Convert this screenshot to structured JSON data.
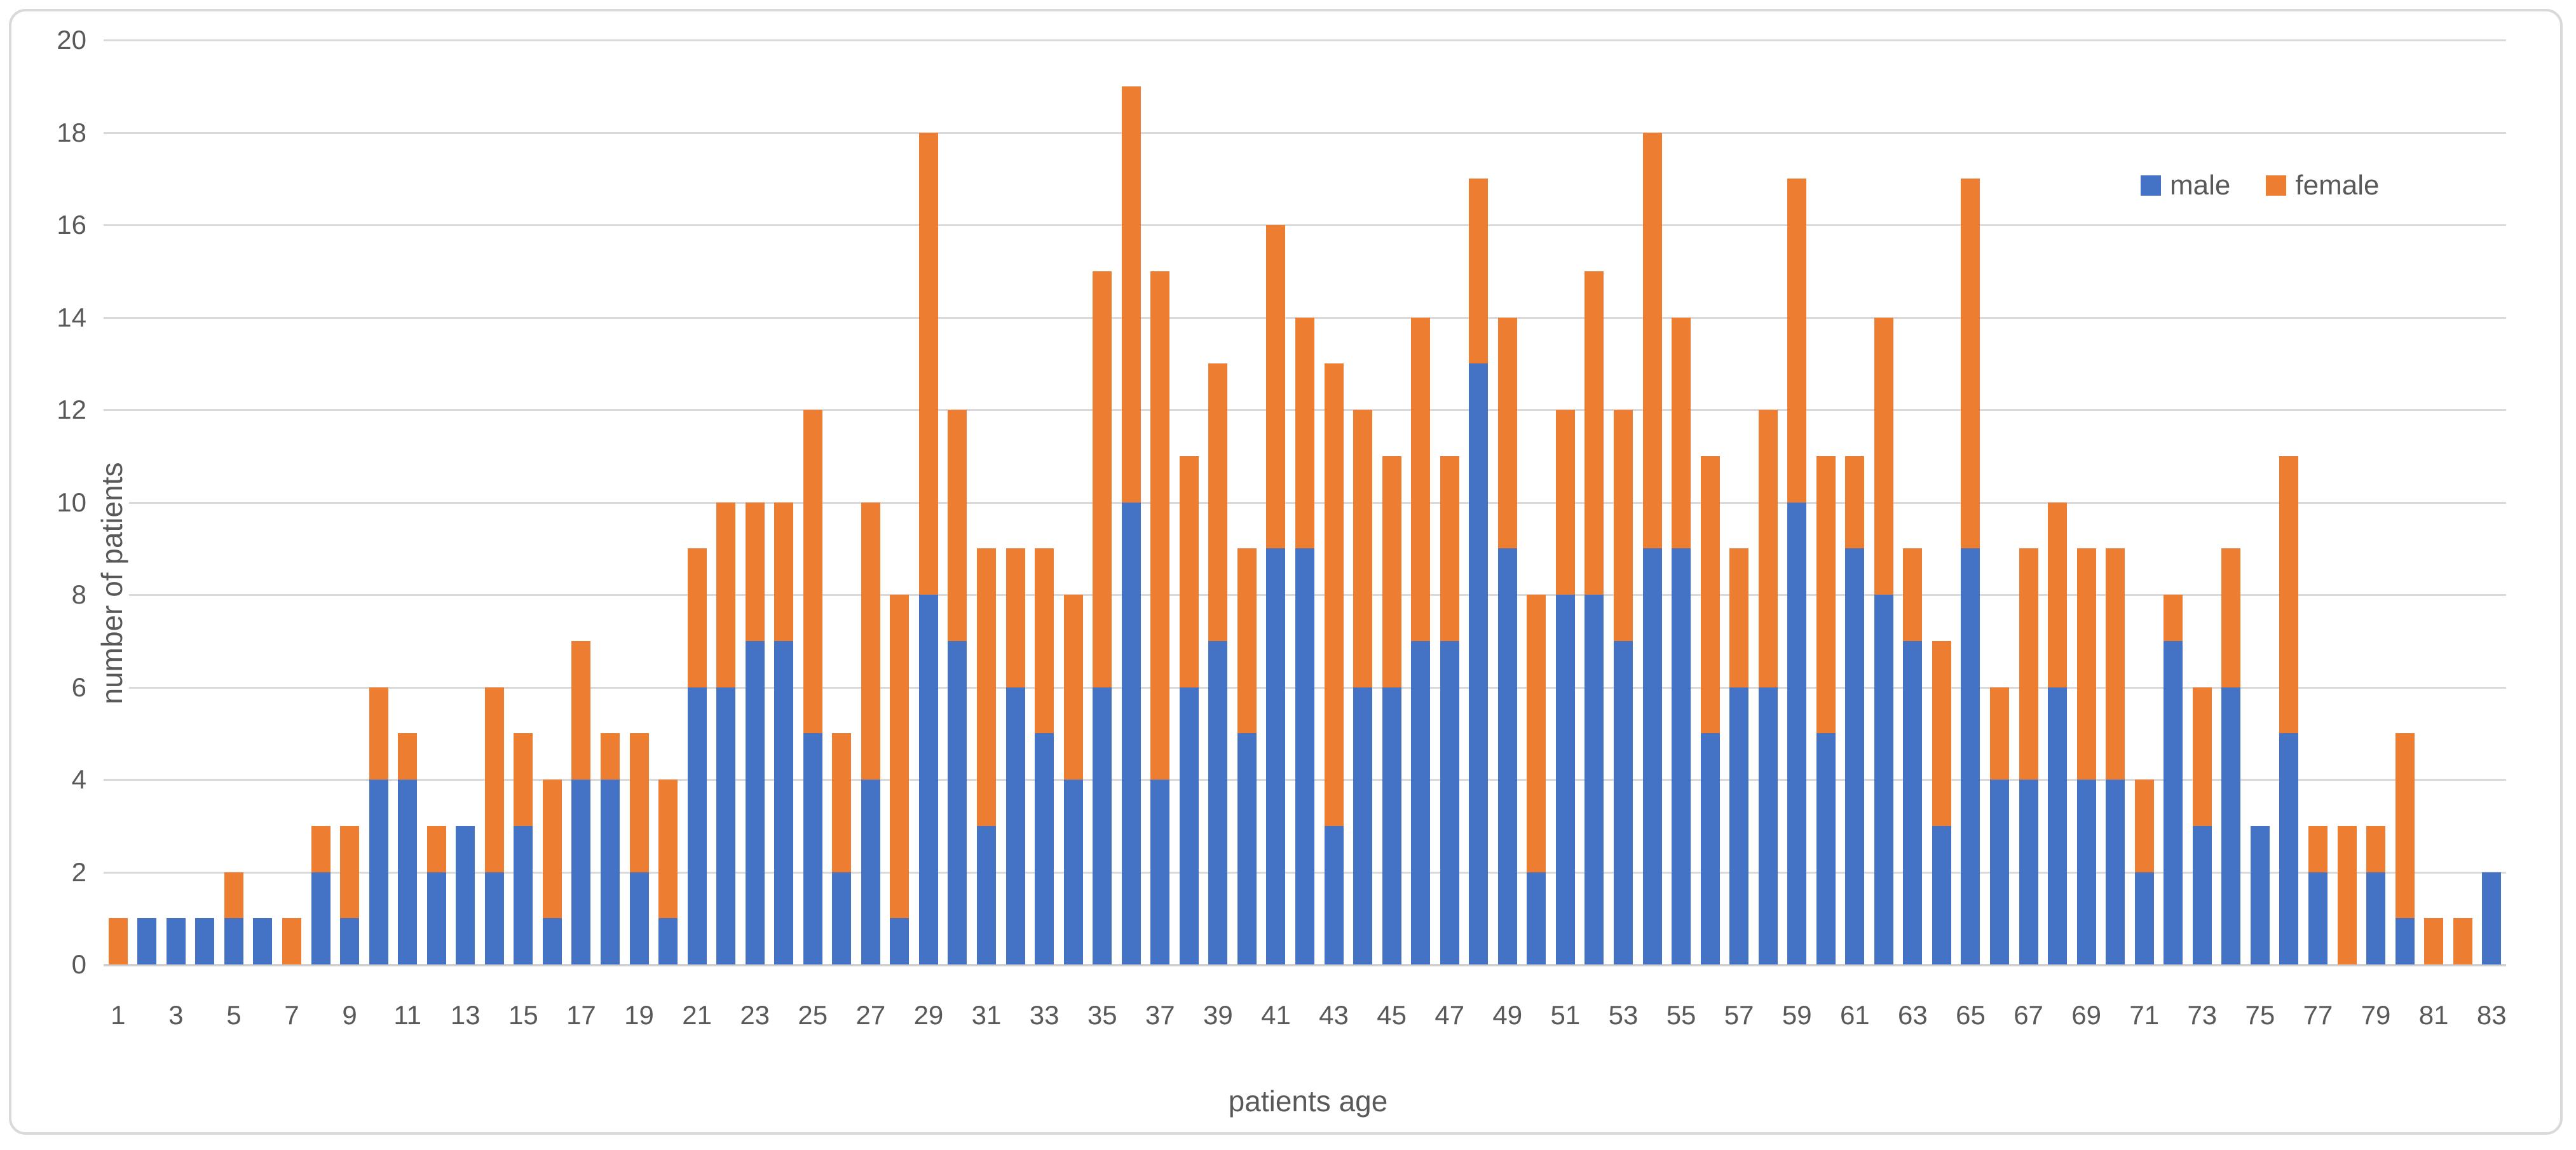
{
  "chart_data": {
    "type": "bar",
    "stacked": true,
    "title": "",
    "xlabel": "patients age",
    "ylabel": "number of patients",
    "ylim": [
      0,
      20
    ],
    "ytick_step": 2,
    "grid": true,
    "legend_position": "top-right",
    "categories": [
      1,
      2,
      3,
      4,
      5,
      6,
      7,
      8,
      9,
      10,
      11,
      12,
      13,
      14,
      15,
      16,
      17,
      18,
      19,
      20,
      21,
      22,
      23,
      24,
      25,
      26,
      27,
      28,
      29,
      30,
      31,
      32,
      33,
      34,
      35,
      36,
      37,
      38,
      39,
      40,
      41,
      42,
      43,
      44,
      45,
      46,
      47,
      48,
      49,
      50,
      51,
      52,
      53,
      54,
      55,
      56,
      57,
      58,
      59,
      60,
      61,
      62,
      63,
      64,
      65,
      66,
      67,
      68,
      69,
      70,
      71,
      72,
      73,
      74,
      75,
      76,
      77,
      78,
      79,
      80,
      81,
      82,
      83
    ],
    "xtick_labels": [
      1,
      3,
      5,
      7,
      9,
      11,
      13,
      15,
      17,
      19,
      21,
      23,
      25,
      27,
      29,
      31,
      33,
      35,
      37,
      39,
      41,
      43,
      45,
      47,
      49,
      51,
      53,
      55,
      57,
      59,
      61,
      63,
      65,
      67,
      69,
      71,
      73,
      75,
      77,
      79,
      81,
      83
    ],
    "series": [
      {
        "name": "male",
        "color": "#4472C4",
        "values": [
          0,
          1,
          1,
          1,
          1,
          1,
          0,
          2,
          1,
          4,
          4,
          2,
          3,
          2,
          3,
          1,
          4,
          4,
          2,
          1,
          6,
          6,
          7,
          7,
          5,
          2,
          4,
          1,
          8,
          7,
          3,
          6,
          5,
          4,
          6,
          10,
          4,
          6,
          7,
          5,
          9,
          9,
          3,
          6,
          6,
          7,
          7,
          13,
          9,
          2,
          8,
          8,
          7,
          9,
          9,
          5,
          6,
          6,
          10,
          5,
          9,
          8,
          7,
          3,
          9,
          4,
          4,
          6,
          4,
          4,
          2,
          7,
          3,
          6,
          3,
          5,
          2,
          0,
          2,
          1,
          0,
          0,
          2
        ]
      },
      {
        "name": "female",
        "color": "#ED7D31",
        "values": [
          1,
          0,
          0,
          0,
          1,
          0,
          1,
          1,
          2,
          2,
          1,
          1,
          0,
          4,
          2,
          3,
          3,
          1,
          3,
          3,
          3,
          4,
          3,
          3,
          7,
          3,
          6,
          7,
          10,
          5,
          6,
          3,
          4,
          4,
          9,
          9,
          11,
          5,
          6,
          4,
          7,
          5,
          10,
          6,
          5,
          7,
          4,
          4,
          5,
          6,
          4,
          7,
          5,
          9,
          5,
          6,
          3,
          6,
          7,
          6,
          2,
          6,
          2,
          4,
          8,
          2,
          5,
          4,
          5,
          5,
          2,
          1,
          3,
          3,
          0,
          6,
          1,
          3,
          1,
          4,
          1,
          1,
          0
        ]
      }
    ]
  },
  "colors": {
    "male": "#4472C4",
    "female": "#ED7D31",
    "gridline": "#D9D9D9",
    "axis_text": "#595959",
    "frame_border": "#D9D9D9",
    "background": "#FFFFFF"
  }
}
